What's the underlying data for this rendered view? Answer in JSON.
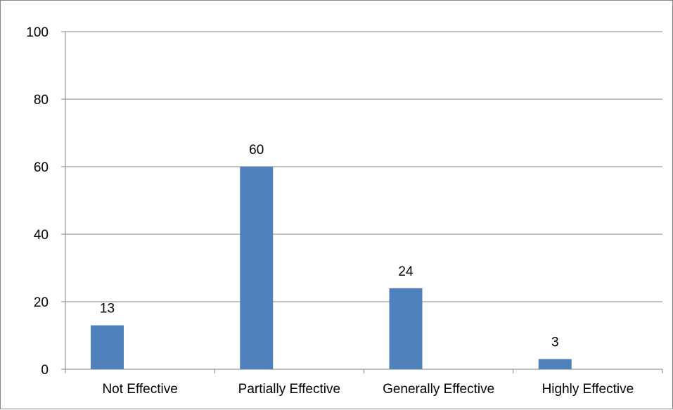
{
  "chart_data": {
    "type": "bar",
    "title": "",
    "xlabel": "",
    "ylabel": "",
    "categories": [
      "Not Effective",
      "Partially Effective",
      "Generally Effective",
      "Highly Effective"
    ],
    "values": [
      13,
      60,
      24,
      3
    ],
    "data_labels": [
      "13",
      "60",
      "24",
      "3"
    ],
    "ylim": [
      0,
      100
    ],
    "y_ticks": [
      0,
      20,
      40,
      60,
      80,
      100
    ],
    "y_tick_labels": [
      "0",
      "20",
      "40",
      "60",
      "80",
      "100"
    ],
    "grid": true,
    "legend": "none",
    "colors": {
      "bar": "#4f81bd",
      "grid": "#868686",
      "text": "#000000"
    }
  }
}
